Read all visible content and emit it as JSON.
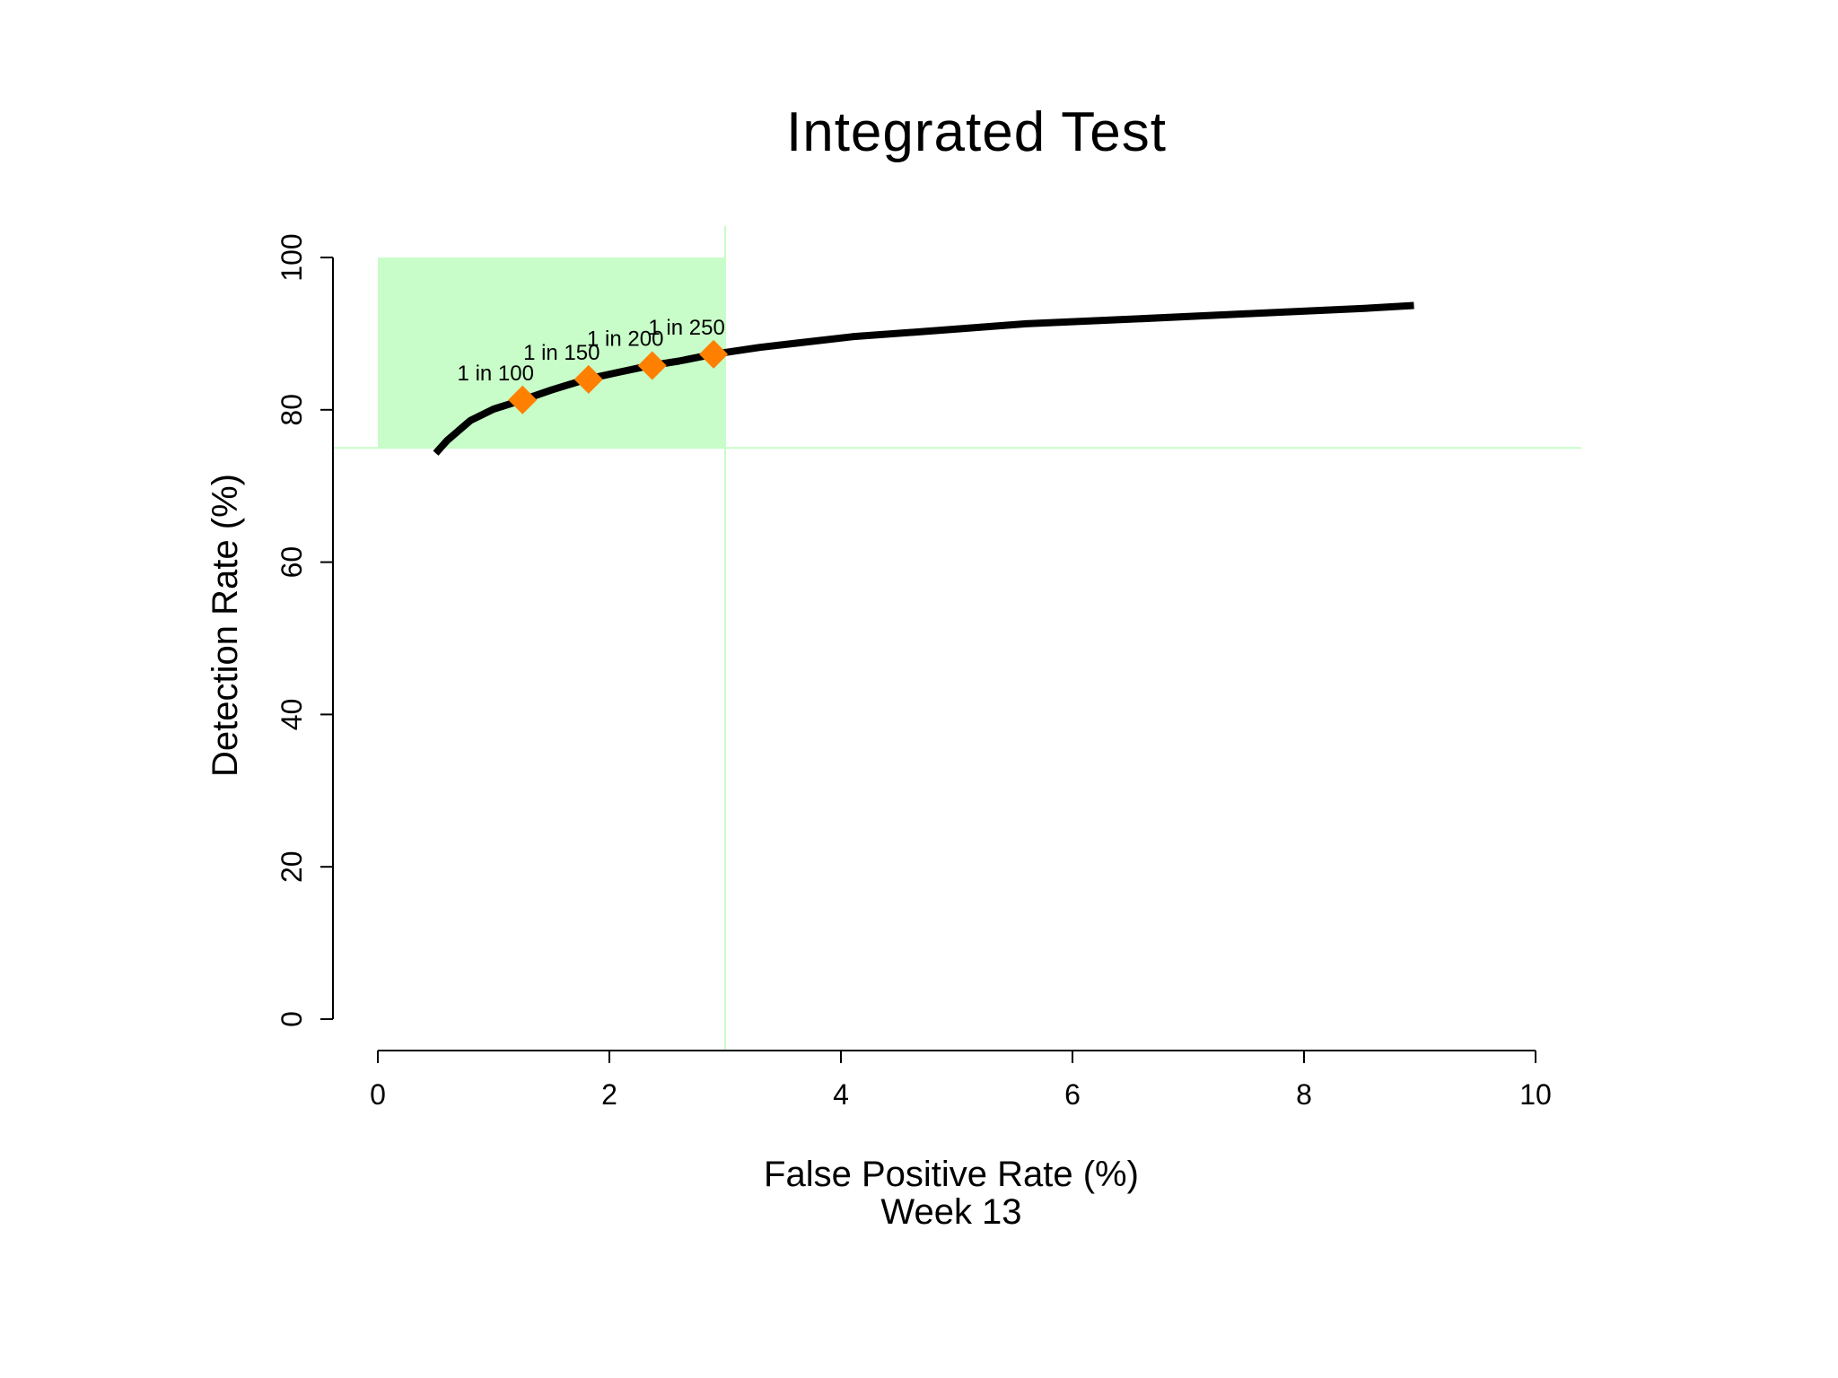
{
  "chart_data": {
    "type": "line",
    "title": "Integrated Test",
    "xlabel": "False Positive Rate (%)",
    "xlabel_sub": "Week 13",
    "ylabel": "Detection Rate (%)",
    "xlim": [
      0,
      10
    ],
    "ylim": [
      0,
      100
    ],
    "x_ticks": [
      0,
      2,
      4,
      6,
      8,
      10
    ],
    "y_ticks": [
      0,
      20,
      40,
      60,
      80,
      100
    ],
    "grid": false,
    "colors": {
      "curve": "#000000",
      "markers": "#ff7f00",
      "region": "#c8fcc8",
      "reference_lines": "#c8fcc8"
    },
    "target_region": {
      "x": [
        0,
        3
      ],
      "y": [
        75,
        100
      ]
    },
    "reference_lines": {
      "x": 3,
      "y": 75
    },
    "series": [
      {
        "x": [
          0.5,
          0.6,
          0.8,
          1.0,
          1.25,
          1.5,
          1.8,
          2.1,
          2.35,
          2.6,
          2.9,
          3.3,
          4.1,
          5.0,
          5.6,
          6.5,
          7.5,
          8.5,
          8.95
        ],
        "y": [
          74.3,
          76.0,
          78.6,
          80.1,
          81.3,
          82.6,
          84.0,
          85.0,
          85.8,
          86.4,
          87.3,
          88.2,
          89.6,
          90.6,
          91.3,
          91.9,
          92.6,
          93.3,
          93.7
        ]
      }
    ],
    "markers": [
      {
        "label": "1 in 100",
        "x": 1.25,
        "y": 81.3
      },
      {
        "label": "1 in 150",
        "x": 1.82,
        "y": 84.0
      },
      {
        "label": "1 in 200",
        "x": 2.37,
        "y": 85.8
      },
      {
        "label": "1 in 250",
        "x": 2.9,
        "y": 87.3
      }
    ]
  }
}
